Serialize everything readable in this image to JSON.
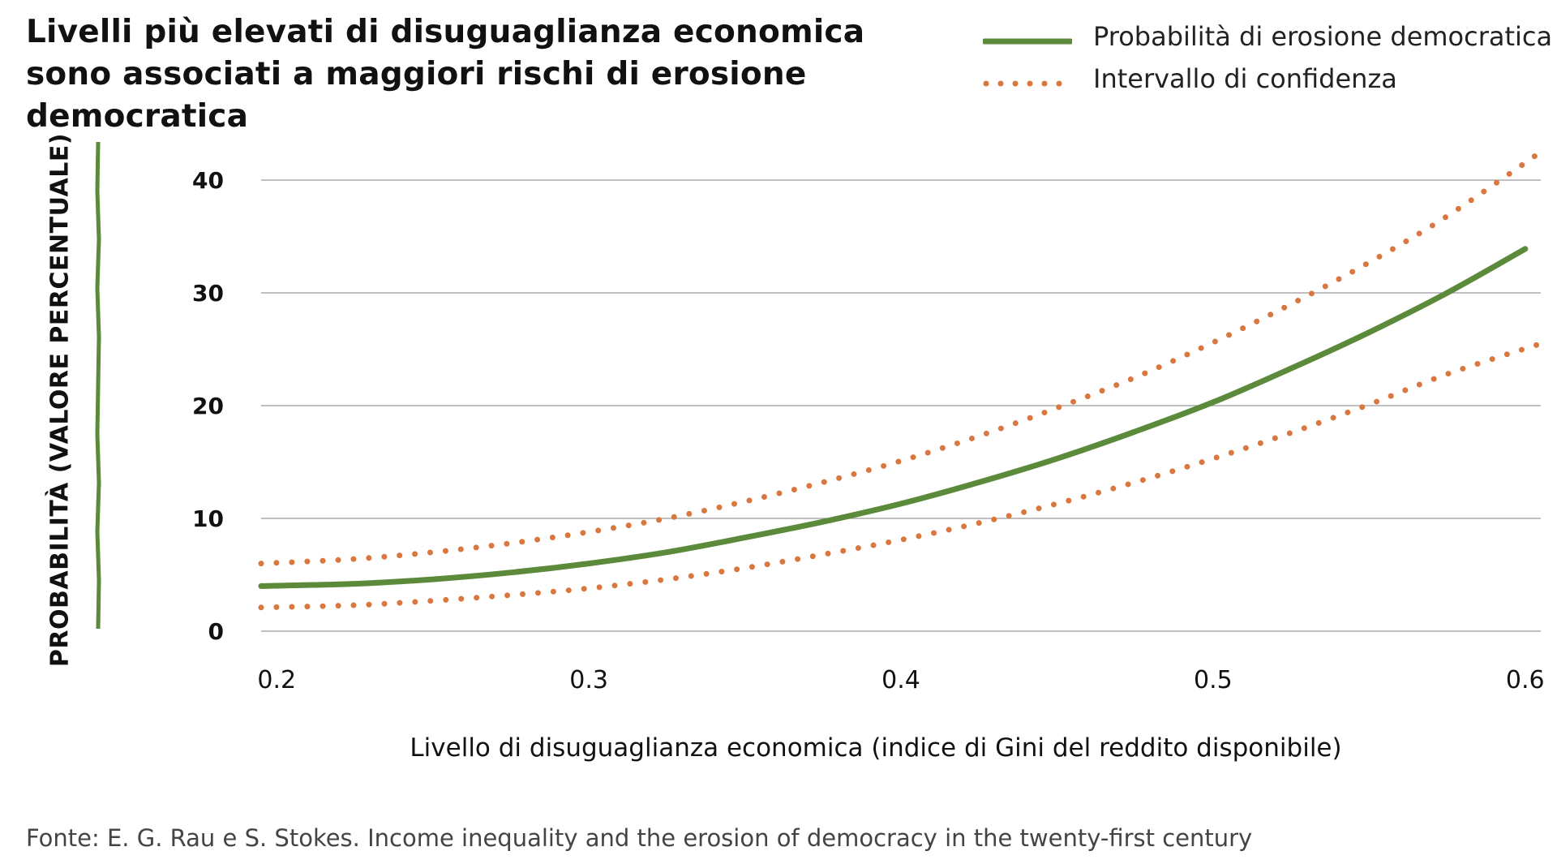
{
  "title": "Livelli più elevati di disuguaglianza economica sono associati a maggiori rischi di erosione democratica",
  "source": "Fonte: E. G. Rau e S. Stokes. Income inequality and the erosion of democracy in the twenty-first century",
  "colors": {
    "main_line": "#5a8a3a",
    "confidence": "#d9773f",
    "grid": "#9a9a9a",
    "text": "#111111"
  },
  "legend": [
    {
      "label": "Probabilità di erosione democratica",
      "style": "solid",
      "color": "#5a8a3a"
    },
    {
      "label": "Intervallo di confidenza",
      "style": "dotted",
      "color": "#d9773f"
    }
  ],
  "chart_data": {
    "type": "line",
    "xlabel": "Livello di disuguaglianza economica (indice di Gini del reddito disponibile)",
    "ylabel": "PROBABILITÀ (VALORE PERCENTUALE)",
    "xlim": [
      0.195,
      0.605
    ],
    "ylim": [
      0,
      40
    ],
    "xticks": [
      0.2,
      0.3,
      0.4,
      0.5,
      0.6
    ],
    "xtick_labels": [
      "0.2",
      "0.3",
      "0.4",
      "0.5",
      "0.6"
    ],
    "yticks": [
      0,
      10,
      20,
      30,
      40
    ],
    "ytick_labels": [
      "0",
      "10",
      "20",
      "30",
      "40"
    ],
    "grid": "horizontal",
    "legend_position": "top-right",
    "series": [
      {
        "name": "Probabilità di erosione democratica",
        "style": "solid",
        "x": [
          0.195,
          0.225,
          0.25,
          0.275,
          0.3,
          0.325,
          0.35,
          0.375,
          0.4,
          0.425,
          0.45,
          0.475,
          0.5,
          0.525,
          0.55,
          0.575,
          0.6
        ],
        "y": [
          4.0,
          4.2,
          4.6,
          5.2,
          6.0,
          7.0,
          8.3,
          9.7,
          11.3,
          13.2,
          15.3,
          17.7,
          20.3,
          23.3,
          26.5,
          30.0,
          33.9
        ]
      },
      {
        "name": "Intervallo di confidenza",
        "style": "dotted",
        "x": [
          0.195,
          0.225,
          0.25,
          0.275,
          0.3,
          0.325,
          0.35,
          0.375,
          0.4,
          0.425,
          0.45,
          0.475,
          0.5,
          0.525,
          0.55,
          0.575,
          0.605
        ],
        "y": [
          6.0,
          6.4,
          7.0,
          7.8,
          8.8,
          10.0,
          11.5,
          13.2,
          15.1,
          17.3,
          19.8,
          22.5,
          25.6,
          29.0,
          32.7,
          36.8,
          42.5
        ]
      },
      {
        "name": "Intervallo di confidenza",
        "style": "dotted",
        "x": [
          0.195,
          0.225,
          0.25,
          0.275,
          0.3,
          0.325,
          0.35,
          0.375,
          0.4,
          0.425,
          0.45,
          0.475,
          0.5,
          0.525,
          0.55,
          0.575,
          0.605
        ],
        "y": [
          2.1,
          2.3,
          2.7,
          3.2,
          3.8,
          4.6,
          5.6,
          6.8,
          8.1,
          9.6,
          11.3,
          13.2,
          15.3,
          17.6,
          20.1,
          22.8,
          25.5
        ]
      }
    ]
  }
}
